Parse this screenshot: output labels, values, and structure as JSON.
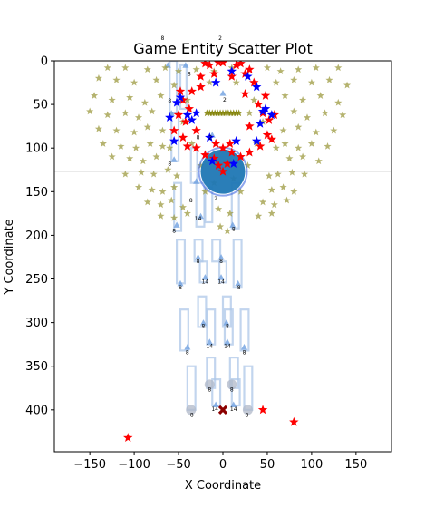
{
  "chart_data": {
    "type": "scatter",
    "title": "Game Entity Scatter Plot",
    "xlabel": "X Coordinate",
    "ylabel": "Y Coordinate",
    "xlim": [
      -190,
      190
    ],
    "ylim": [
      448,
      0
    ],
    "y_inverted": true,
    "x_ticks": [
      -150,
      -100,
      -50,
      0,
      50,
      100,
      150
    ],
    "y_ticks": [
      0,
      50,
      100,
      150,
      200,
      250,
      300,
      350,
      400
    ],
    "grid": false,
    "horizontal_line_y": 127,
    "colors": {
      "olive_star": "#9c9a3f",
      "red_star": "#ff0000",
      "blue_star": "#0000ff",
      "light_blue": "#aec7e8",
      "mid_blue": "#6fa0e0",
      "circle_fill": "#1f77b4",
      "circle_edge": "#4169e1",
      "dark_red_x": "#8b0000"
    },
    "central_circle": {
      "x": 0,
      "y": 127,
      "r": 25
    },
    "number_labels": [
      {
        "text": "8",
        "x": -68,
        "y": -24
      },
      {
        "text": "2",
        "x": -3,
        "y": -24
      },
      {
        "text": "8",
        "x": -60,
        "y": 48
      },
      {
        "text": "2",
        "x": 2,
        "y": 47
      },
      {
        "text": "8",
        "x": -38,
        "y": 17
      },
      {
        "text": "8",
        "x": -28,
        "y": 90
      },
      {
        "text": "2",
        "x": -14,
        "y": 90
      },
      {
        "text": "8",
        "x": -60,
        "y": 120
      },
      {
        "text": "2",
        "x": -8,
        "y": 160
      },
      {
        "text": "8",
        "x": -36,
        "y": 162
      },
      {
        "text": "14",
        "x": -28,
        "y": 183
      },
      {
        "text": "8",
        "x": -55,
        "y": 197
      },
      {
        "text": "8",
        "x": 12,
        "y": 195
      },
      {
        "text": "8",
        "x": -28,
        "y": 232
      },
      {
        "text": "8",
        "x": -2,
        "y": 232
      },
      {
        "text": "14",
        "x": -20,
        "y": 255
      },
      {
        "text": "14",
        "x": -2,
        "y": 255
      },
      {
        "text": "8",
        "x": -48,
        "y": 262
      },
      {
        "text": "8",
        "x": 18,
        "y": 262
      },
      {
        "text": "8",
        "x": -22,
        "y": 306
      },
      {
        "text": "8",
        "x": 5,
        "y": 306
      },
      {
        "text": "14",
        "x": -15,
        "y": 329
      },
      {
        "text": "14",
        "x": 5,
        "y": 329
      },
      {
        "text": "8",
        "x": -40,
        "y": 336
      },
      {
        "text": "8",
        "x": 24,
        "y": 336
      },
      {
        "text": "8",
        "x": -15,
        "y": 379
      },
      {
        "text": "8",
        "x": 10,
        "y": 379
      },
      {
        "text": "14",
        "x": -9,
        "y": 401
      },
      {
        "text": "14",
        "x": 12,
        "y": 401
      },
      {
        "text": "8",
        "x": -35,
        "y": 408
      },
      {
        "text": "8",
        "x": 27,
        "y": 408
      }
    ],
    "light_rectangles": [
      {
        "x": -60,
        "y": 0,
        "w": 8,
        "h": 60
      },
      {
        "x": -58,
        "y": 60,
        "w": 8,
        "h": 55
      },
      {
        "x": -48,
        "y": 5,
        "w": 7,
        "h": 50
      },
      {
        "x": -36,
        "y": 100,
        "w": 7,
        "h": 40
      },
      {
        "x": -30,
        "y": 140,
        "w": 9,
        "h": 50
      },
      {
        "x": -55,
        "y": 140,
        "w": 8,
        "h": 55
      },
      {
        "x": 10,
        "y": 140,
        "w": 8,
        "h": 52
      },
      {
        "x": -20,
        "y": 145,
        "w": 8,
        "h": 40
      },
      {
        "x": -52,
        "y": 205,
        "w": 9,
        "h": 50
      },
      {
        "x": -32,
        "y": 205,
        "w": 9,
        "h": 25
      },
      {
        "x": -12,
        "y": 205,
        "w": 9,
        "h": 25
      },
      {
        "x": 12,
        "y": 205,
        "w": 9,
        "h": 55
      },
      {
        "x": -26,
        "y": 230,
        "w": 8,
        "h": 24
      },
      {
        "x": -4,
        "y": 230,
        "w": 8,
        "h": 24
      },
      {
        "x": -48,
        "y": 285,
        "w": 9,
        "h": 47
      },
      {
        "x": -28,
        "y": 270,
        "w": 9,
        "h": 35
      },
      {
        "x": 0,
        "y": 270,
        "w": 9,
        "h": 35
      },
      {
        "x": 20,
        "y": 285,
        "w": 9,
        "h": 47
      },
      {
        "x": -18,
        "y": 285,
        "w": 9,
        "h": 40
      },
      {
        "x": 2,
        "y": 285,
        "w": 9,
        "h": 40
      },
      {
        "x": -40,
        "y": 350,
        "w": 9,
        "h": 50
      },
      {
        "x": -18,
        "y": 340,
        "w": 9,
        "h": 35
      },
      {
        "x": 8,
        "y": 340,
        "w": 9,
        "h": 35
      },
      {
        "x": 24,
        "y": 350,
        "w": 9,
        "h": 50
      },
      {
        "x": -12,
        "y": 365,
        "w": 9,
        "h": 30
      },
      {
        "x": 10,
        "y": 365,
        "w": 9,
        "h": 30
      }
    ],
    "triangles": [
      {
        "x": -62,
        "y": 5
      },
      {
        "x": -42,
        "y": 5
      },
      {
        "x": 0,
        "y": 37
      },
      {
        "x": -58,
        "y": 60
      },
      {
        "x": -55,
        "y": 113
      },
      {
        "x": -12,
        "y": 85
      },
      {
        "x": -30,
        "y": 138
      },
      {
        "x": -52,
        "y": 188
      },
      {
        "x": 11,
        "y": 188
      },
      {
        "x": -25,
        "y": 178
      },
      {
        "x": -28,
        "y": 225
      },
      {
        "x": -2,
        "y": 225
      },
      {
        "x": -20,
        "y": 248
      },
      {
        "x": -2,
        "y": 248
      },
      {
        "x": -48,
        "y": 255
      },
      {
        "x": 17,
        "y": 255
      },
      {
        "x": -22,
        "y": 300
      },
      {
        "x": 4,
        "y": 300
      },
      {
        "x": -15,
        "y": 322
      },
      {
        "x": 5,
        "y": 322
      },
      {
        "x": -40,
        "y": 328
      },
      {
        "x": 24,
        "y": 328
      },
      {
        "x": -8,
        "y": 394
      },
      {
        "x": 12,
        "y": 394
      }
    ],
    "small_circles": [
      {
        "x": -15,
        "y": 371
      },
      {
        "x": 10,
        "y": 371
      },
      {
        "x": -36,
        "y": 400
      },
      {
        "x": 28,
        "y": 400
      }
    ],
    "olive_bar": {
      "x1": -18,
      "x2": 18,
      "y": 60
    },
    "olive_stars": [
      [
        -130,
        8
      ],
      [
        -110,
        8
      ],
      [
        -85,
        10
      ],
      [
        -65,
        8
      ],
      [
        -50,
        12
      ],
      [
        -30,
        10
      ],
      [
        -10,
        12
      ],
      [
        10,
        8
      ],
      [
        30,
        10
      ],
      [
        50,
        8
      ],
      [
        65,
        12
      ],
      [
        85,
        10
      ],
      [
        105,
        8
      ],
      [
        130,
        8
      ],
      [
        -140,
        20
      ],
      [
        -120,
        22
      ],
      [
        -100,
        25
      ],
      [
        -75,
        22
      ],
      [
        -55,
        28
      ],
      [
        60,
        25
      ],
      [
        80,
        22
      ],
      [
        100,
        25
      ],
      [
        120,
        22
      ],
      [
        140,
        28
      ],
      [
        -145,
        40
      ],
      [
        -125,
        45
      ],
      [
        -105,
        42
      ],
      [
        -88,
        48
      ],
      [
        -70,
        40
      ],
      [
        70,
        40
      ],
      [
        90,
        45
      ],
      [
        110,
        40
      ],
      [
        130,
        48
      ],
      [
        -150,
        58
      ],
      [
        -130,
        62
      ],
      [
        -110,
        60
      ],
      [
        -95,
        65
      ],
      [
        -80,
        58
      ],
      [
        80,
        58
      ],
      [
        95,
        65
      ],
      [
        115,
        60
      ],
      [
        135,
        62
      ],
      [
        -140,
        78
      ],
      [
        -120,
        80
      ],
      [
        -100,
        82
      ],
      [
        -85,
        76
      ],
      [
        -68,
        80
      ],
      [
        68,
        80
      ],
      [
        85,
        76
      ],
      [
        105,
        82
      ],
      [
        125,
        80
      ],
      [
        -135,
        95
      ],
      [
        -115,
        98
      ],
      [
        -98,
        100
      ],
      [
        -82,
        95
      ],
      [
        -68,
        98
      ],
      [
        70,
        95
      ],
      [
        85,
        100
      ],
      [
        100,
        95
      ],
      [
        118,
        98
      ],
      [
        -125,
        110
      ],
      [
        -105,
        112
      ],
      [
        -90,
        115
      ],
      [
        -75,
        110
      ],
      [
        75,
        112
      ],
      [
        90,
        110
      ],
      [
        108,
        115
      ],
      [
        -110,
        130
      ],
      [
        -92,
        128
      ],
      [
        -78,
        130
      ],
      [
        -62,
        125
      ],
      [
        62,
        130
      ],
      [
        78,
        128
      ],
      [
        92,
        130
      ],
      [
        -95,
        145
      ],
      [
        -80,
        148
      ],
      [
        -68,
        150
      ],
      [
        -55,
        145
      ],
      [
        55,
        148
      ],
      [
        68,
        145
      ],
      [
        80,
        150
      ],
      [
        -85,
        162
      ],
      [
        -70,
        165
      ],
      [
        -58,
        160
      ],
      [
        -45,
        168
      ],
      [
        45,
        162
      ],
      [
        58,
        165
      ],
      [
        72,
        160
      ],
      [
        -70,
        178
      ],
      [
        -55,
        180
      ],
      [
        -40,
        175
      ],
      [
        40,
        178
      ],
      [
        55,
        175
      ],
      [
        -40,
        45
      ],
      [
        -45,
        70
      ],
      [
        -35,
        95
      ],
      [
        -25,
        120
      ],
      [
        35,
        45
      ],
      [
        45,
        70
      ],
      [
        38,
        95
      ],
      [
        28,
        120
      ],
      [
        -20,
        150
      ],
      [
        20,
        150
      ],
      [
        -5,
        170
      ],
      [
        8,
        175
      ],
      [
        -30,
        60
      ],
      [
        30,
        60
      ],
      [
        -15,
        25
      ],
      [
        15,
        25
      ],
      [
        -3,
        190
      ],
      [
        5,
        195
      ],
      [
        -52,
        132
      ],
      [
        52,
        132
      ],
      [
        -60,
        100
      ],
      [
        60,
        100
      ],
      [
        -10,
        140
      ],
      [
        12,
        135
      ]
    ],
    "red_stars": [
      [
        -15,
        5
      ],
      [
        0,
        2
      ],
      [
        15,
        5
      ],
      [
        30,
        10
      ],
      [
        -25,
        18
      ],
      [
        -10,
        15
      ],
      [
        10,
        18
      ],
      [
        25,
        15
      ],
      [
        -35,
        35
      ],
      [
        -25,
        30
      ],
      [
        25,
        38
      ],
      [
        35,
        25
      ],
      [
        -45,
        45
      ],
      [
        -38,
        55
      ],
      [
        40,
        50
      ],
      [
        45,
        60
      ],
      [
        -50,
        62
      ],
      [
        -42,
        70
      ],
      [
        52,
        68
      ],
      [
        58,
        62
      ],
      [
        -55,
        80
      ],
      [
        -45,
        88
      ],
      [
        50,
        85
      ],
      [
        55,
        90
      ],
      [
        -40,
        98
      ],
      [
        -30,
        100
      ],
      [
        42,
        98
      ],
      [
        30,
        105
      ],
      [
        -20,
        108
      ],
      [
        -10,
        112
      ],
      [
        0,
        100
      ],
      [
        10,
        105
      ],
      [
        20,
        110
      ],
      [
        -5,
        120
      ],
      [
        5,
        118
      ],
      [
        0,
        127
      ],
      [
        -8,
        95
      ],
      [
        8,
        95
      ],
      [
        -48,
        35
      ],
      [
        48,
        40
      ],
      [
        -5,
        2
      ],
      [
        45,
        400
      ],
      [
        80,
        414
      ],
      [
        -107,
        432
      ],
      [
        -30,
        80
      ],
      [
        30,
        75
      ],
      [
        -20,
        3
      ],
      [
        20,
        3
      ]
    ],
    "blue_stars": [
      [
        -8,
        25
      ],
      [
        10,
        12
      ],
      [
        28,
        18
      ],
      [
        38,
        30
      ],
      [
        -52,
        48
      ],
      [
        -40,
        62
      ],
      [
        -35,
        68
      ],
      [
        -60,
        65
      ],
      [
        48,
        55
      ],
      [
        55,
        62
      ],
      [
        -55,
        92
      ],
      [
        -15,
        88
      ],
      [
        15,
        92
      ],
      [
        38,
        92
      ],
      [
        -12,
        115
      ],
      [
        12,
        118
      ],
      [
        45,
        58
      ],
      [
        -48,
        42
      ],
      [
        42,
        72
      ],
      [
        -30,
        60
      ]
    ],
    "dark_red_x": {
      "x": 0,
      "y": 400
    }
  }
}
